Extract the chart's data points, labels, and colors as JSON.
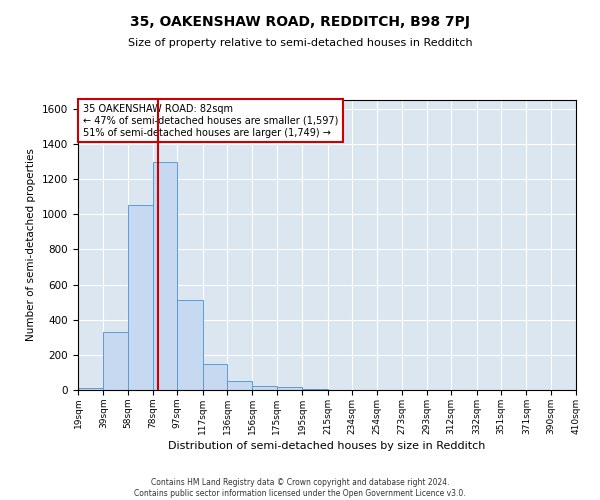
{
  "title": "35, OAKENSHAW ROAD, REDDITCH, B98 7PJ",
  "subtitle": "Size of property relative to semi-detached houses in Redditch",
  "xlabel": "Distribution of semi-detached houses by size in Redditch",
  "ylabel": "Number of semi-detached properties",
  "footer_line1": "Contains HM Land Registry data © Crown copyright and database right 2024.",
  "footer_line2": "Contains public sector information licensed under the Open Government Licence v3.0.",
  "bar_edges": [
    19,
    39,
    58,
    78,
    97,
    117,
    136,
    156,
    175,
    195,
    215,
    234,
    254,
    273,
    293,
    312,
    332,
    351,
    371,
    390,
    410
  ],
  "bar_heights": [
    10,
    330,
    1050,
    1300,
    510,
    150,
    50,
    25,
    15,
    5,
    2,
    0,
    0,
    0,
    0,
    0,
    0,
    0,
    0,
    0
  ],
  "tick_labels": [
    "19sqm",
    "39sqm",
    "58sqm",
    "78sqm",
    "97sqm",
    "117sqm",
    "136sqm",
    "156sqm",
    "175sqm",
    "195sqm",
    "215sqm",
    "234sqm",
    "254sqm",
    "273sqm",
    "293sqm",
    "312sqm",
    "332sqm",
    "351sqm",
    "371sqm",
    "390sqm",
    "410sqm"
  ],
  "property_size": 82,
  "property_line_color": "#cc0000",
  "bar_facecolor": "#c6d9f0",
  "bar_edgecolor": "#5b9bd5",
  "background_color": "#dce6f1",
  "annotation_line1": "35 OAKENSHAW ROAD: 82sqm",
  "annotation_line2": "← 47% of semi-detached houses are smaller (1,597)",
  "annotation_line3": "51% of semi-detached houses are larger (1,749) →",
  "annotation_box_edgecolor": "#cc0000",
  "ylim": [
    0,
    1650
  ],
  "yticks": [
    0,
    200,
    400,
    600,
    800,
    1000,
    1200,
    1400,
    1600
  ],
  "fig_width": 6.0,
  "fig_height": 5.0,
  "dpi": 100
}
